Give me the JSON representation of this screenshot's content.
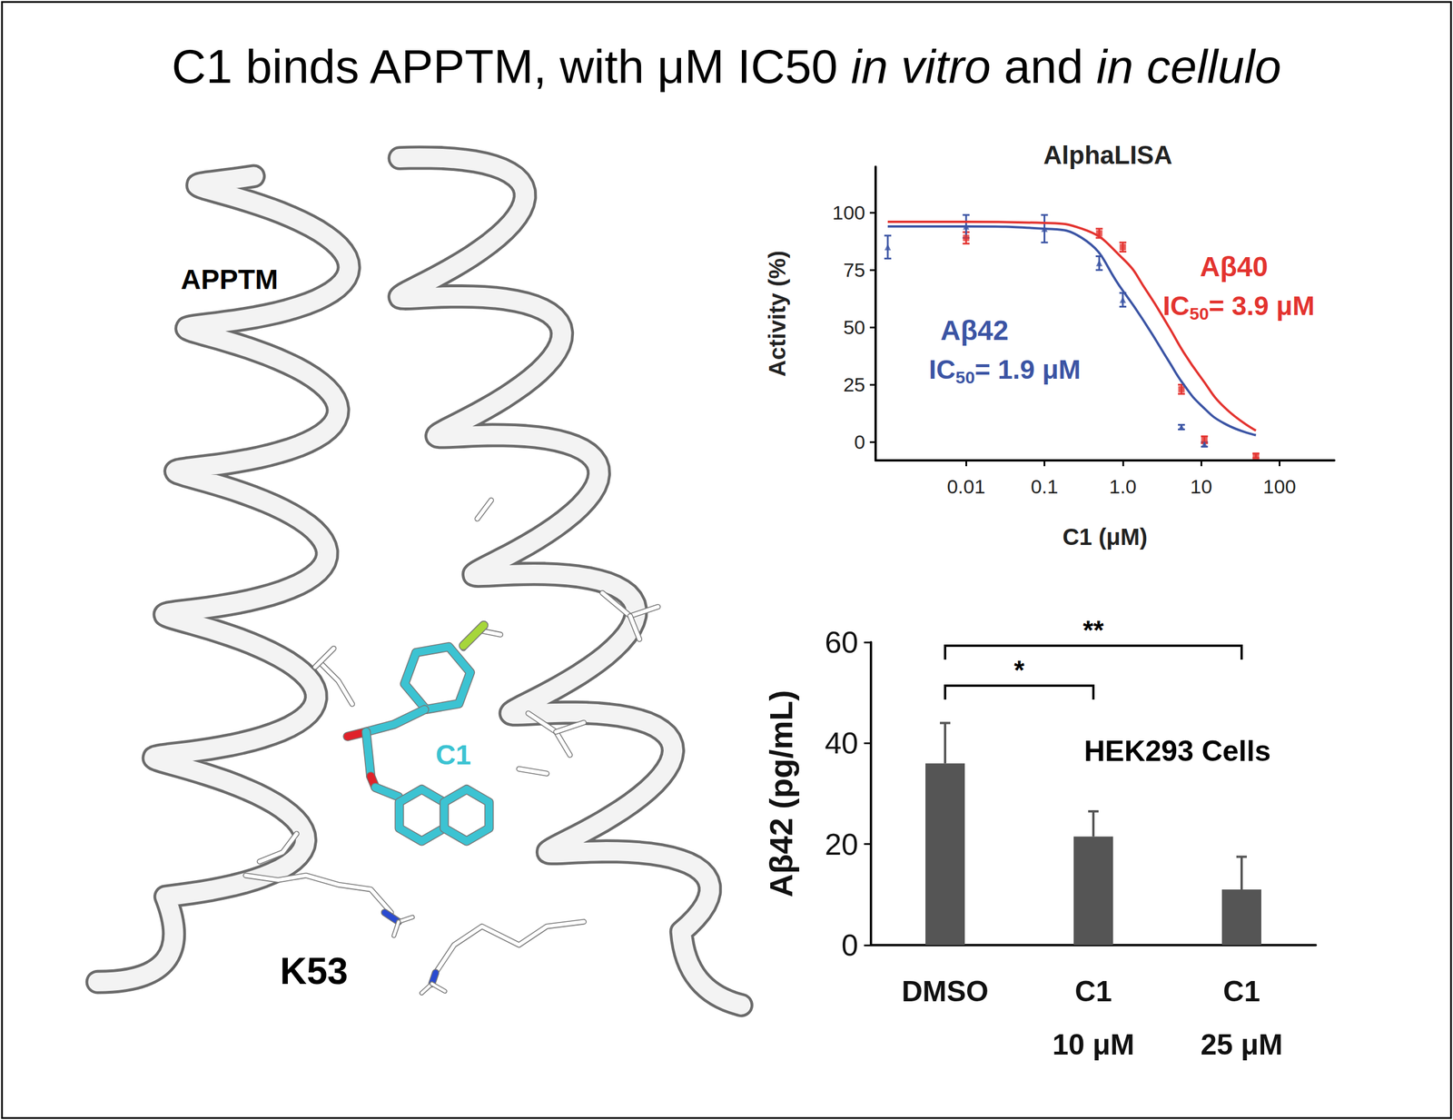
{
  "title": [
    {
      "text": "C1 binds APPTM, with μM IC50 "
    },
    {
      "text": "in vitro",
      "italic": true
    },
    {
      "text": " and "
    },
    {
      "text": "in cellulo",
      "italic": true
    }
  ],
  "diagram": {
    "protein": "APPTM",
    "ligand": "C1",
    "residue": "K53"
  },
  "chart_data": [
    {
      "type": "scatter",
      "title": "AlphaLISA",
      "x_label": "C1 (μM)",
      "y_label": "Activity (%)",
      "log": "x",
      "grid": false,
      "xlim": [
        0.0007,
        500
      ],
      "xticks": [
        0.01,
        0.1,
        {
          "value": 1,
          "label": "1.0"
        },
        10,
        100
      ],
      "ylim": [
        -8,
        120
      ],
      "yticks": [
        0,
        25,
        50,
        75,
        100
      ],
      "series": [
        {
          "name": "Aβ40",
          "color": "#e3332f",
          "marker": "square",
          "annotation": [
            {
              "text": "IC"
            },
            {
              "text": "50",
              "sub": true
            },
            {
              "text": "= 3.9 μM"
            }
          ],
          "x": [
            0.01,
            0.5,
            1,
            5.6,
            11,
            50
          ],
          "values": [
            89,
            91,
            85,
            23,
            1,
            -6
          ],
          "errors": [
            2.5,
            2,
            2,
            2,
            1.5,
            1
          ],
          "fit": {
            "x": [
              0.001,
              0.01,
              0.1,
              0.3,
              1,
              2,
              3.9,
              6,
              10,
              20,
              50
            ],
            "values": [
              96,
              96,
              95.5,
              93,
              80,
              66,
              50,
              39,
              28,
              15,
              5
            ]
          }
        },
        {
          "name": "Aβ42",
          "color": "#3b54a4",
          "marker": "triangle",
          "annotation": [
            {
              "text": "IC"
            },
            {
              "text": "50",
              "sub": true
            },
            {
              "text": "= 1.9 μM"
            }
          ],
          "x": [
            0.001,
            0.01,
            0.1,
            0.5,
            1,
            5.6,
            11
          ],
          "values": [
            85,
            94,
            93,
            78,
            62,
            6.5,
            -1
          ],
          "errors": [
            5,
            5,
            6,
            3,
            3,
            1,
            1
          ],
          "fit": {
            "x": [
              0.001,
              0.01,
              0.1,
              0.3,
              1,
              2,
              3.9,
              6,
              10,
              20,
              50
            ],
            "values": [
              94,
              94,
              93,
              89,
              66,
              51,
              35,
              25,
              16,
              8,
              3
            ]
          }
        }
      ]
    },
    {
      "type": "bar",
      "y_label": "Aβ42 (pg/mL)",
      "annotation": "HEK293 Cells",
      "grid": false,
      "categories": [
        "DMSO",
        "C1\n10 μM",
        "C1\n25 μM"
      ],
      "values": [
        36,
        21.5,
        11
      ],
      "errors": [
        8,
        5,
        6.5
      ],
      "color": "#555555",
      "ylim": [
        0,
        60
      ],
      "yticks": [
        0,
        20,
        40,
        60
      ],
      "significance": [
        {
          "from": "DMSO",
          "to": "C1\n10 μM",
          "label": "*"
        },
        {
          "from": "DMSO",
          "to": "C1\n25 μM",
          "label": "**"
        }
      ]
    }
  ]
}
